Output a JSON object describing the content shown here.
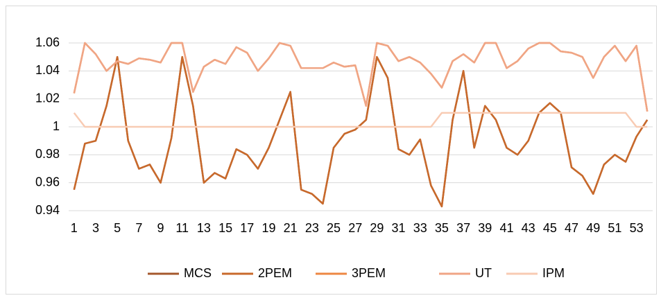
{
  "chart_data": {
    "type": "line",
    "categories": [
      1,
      null,
      3,
      null,
      5,
      null,
      7,
      null,
      9,
      null,
      11,
      null,
      13,
      null,
      15,
      null,
      17,
      null,
      19,
      null,
      21,
      null,
      23,
      null,
      25,
      null,
      27,
      null,
      29,
      null,
      31,
      null,
      33,
      null,
      35,
      null,
      37,
      null,
      39,
      null,
      41,
      null,
      43,
      null,
      45,
      null,
      47,
      null,
      49,
      null,
      51,
      null,
      53,
      null
    ],
    "series": [
      {
        "name": "MCS",
        "color": "#a5582c",
        "values": [
          0.955,
          0.988,
          0.99,
          1.015,
          1.05,
          0.99,
          0.97,
          0.973,
          0.96,
          0.992,
          1.05,
          1.015,
          0.96,
          0.967,
          0.963,
          0.984,
          0.98,
          0.97,
          0.985,
          1.005,
          1.025,
          0.955,
          0.952,
          0.945,
          0.985,
          0.995,
          0.998,
          1.005,
          1.05,
          1.035,
          0.984,
          0.98,
          0.991,
          0.958,
          0.943,
          1.005,
          1.04,
          0.985,
          1.015,
          1.005,
          0.985,
          0.98,
          0.99,
          1.01,
          1.017,
          1.01,
          0.971,
          0.965,
          0.952,
          0.973,
          0.98,
          0.975,
          0.993,
          1.005
        ]
      },
      {
        "name": "2PEM",
        "color": "#c8692b",
        "values": [
          0.955,
          0.988,
          0.99,
          1.015,
          1.05,
          0.99,
          0.97,
          0.973,
          0.96,
          0.992,
          1.05,
          1.015,
          0.96,
          0.967,
          0.963,
          0.984,
          0.98,
          0.97,
          0.985,
          1.005,
          1.025,
          0.955,
          0.952,
          0.945,
          0.985,
          0.995,
          0.998,
          1.005,
          1.05,
          1.035,
          0.984,
          0.98,
          0.991,
          0.958,
          0.943,
          1.005,
          1.04,
          0.985,
          1.015,
          1.005,
          0.985,
          0.98,
          0.99,
          1.01,
          1.017,
          1.01,
          0.971,
          0.965,
          0.952,
          0.973,
          0.98,
          0.975,
          0.993,
          1.005
        ]
      },
      {
        "name": "3PEM",
        "color": "#ed8743",
        "values": [
          1.024,
          1.06,
          1.052,
          1.04,
          1.047,
          1.045,
          1.049,
          1.048,
          1.046,
          1.06,
          1.06,
          1.025,
          1.043,
          1.048,
          1.045,
          1.057,
          1.053,
          1.04,
          1.049,
          1.06,
          1.058,
          1.042,
          1.042,
          1.042,
          1.046,
          1.043,
          1.044,
          1.015,
          1.06,
          1.058,
          1.047,
          1.05,
          1.046,
          1.038,
          1.028,
          1.047,
          1.052,
          1.046,
          1.06,
          1.06,
          1.042,
          1.047,
          1.056,
          1.06,
          1.06,
          1.054,
          1.053,
          1.05,
          1.035,
          1.05,
          1.058,
          1.047,
          1.058,
          1.011
        ]
      },
      {
        "name": "UT",
        "color": "#f0a585",
        "values": [
          1.024,
          1.06,
          1.052,
          1.04,
          1.047,
          1.045,
          1.049,
          1.048,
          1.046,
          1.06,
          1.06,
          1.025,
          1.043,
          1.048,
          1.045,
          1.057,
          1.053,
          1.04,
          1.049,
          1.06,
          1.058,
          1.042,
          1.042,
          1.042,
          1.046,
          1.043,
          1.044,
          1.015,
          1.06,
          1.058,
          1.047,
          1.05,
          1.046,
          1.038,
          1.028,
          1.047,
          1.052,
          1.046,
          1.06,
          1.06,
          1.042,
          1.047,
          1.056,
          1.06,
          1.06,
          1.054,
          1.053,
          1.05,
          1.035,
          1.05,
          1.058,
          1.047,
          1.058,
          1.011
        ]
      },
      {
        "name": "IPM",
        "color": "#f8cbb3",
        "values": [
          1.01,
          1,
          1,
          1,
          1,
          1,
          1,
          1,
          1,
          1,
          1,
          1,
          1,
          1,
          1,
          1,
          1,
          1,
          1,
          1,
          1,
          1,
          1,
          1,
          1,
          1,
          1,
          1,
          1,
          1,
          1,
          1,
          1,
          1,
          1.01,
          1.01,
          1.01,
          1.01,
          1.01,
          1.01,
          1.01,
          1.01,
          1.01,
          1.01,
          1.01,
          1.01,
          1.01,
          1.01,
          1.01,
          1.01,
          1.01,
          1.01,
          1,
          1
        ]
      }
    ],
    "ylim": [
      0.94,
      1.06
    ],
    "yticks": [
      0.94,
      0.96,
      0.98,
      1,
      1.02,
      1.04,
      1.06
    ],
    "grid": true,
    "legend": "bottom"
  }
}
